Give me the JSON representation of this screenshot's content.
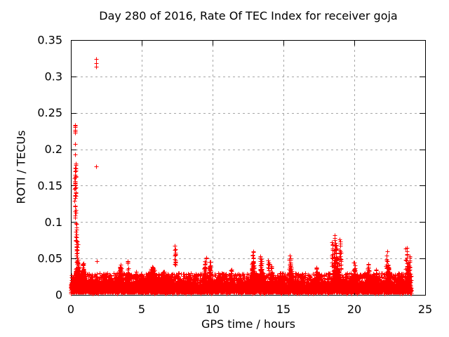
{
  "chart_data": {
    "type": "scatter",
    "title": "Day 280 of 2016, Rate Of TEC Index for receiver goja",
    "xlabel": "GPS time / hours",
    "ylabel": "ROTI / TECUs",
    "xlim": [
      0,
      25
    ],
    "ylim": [
      0,
      0.35
    ],
    "xtick_values": [
      0,
      5,
      10,
      15,
      20,
      25
    ],
    "xtick_labels": [
      "0",
      "5",
      "10",
      "15",
      "20",
      "25"
    ],
    "ytick_values": [
      0,
      0.05,
      0.1,
      0.15,
      0.2,
      0.25,
      0.3,
      0.35
    ],
    "ytick_labels": [
      "0",
      "0.05",
      "0.1",
      "0.15",
      "0.2",
      "0.25",
      "0.3",
      "0.35"
    ],
    "grid": true,
    "legend": "none",
    "marker": "plus",
    "colors": {
      "points": "#ff0000",
      "grid": "#a6a6a6",
      "axis": "#000000",
      "text": "#000000",
      "background": "#ffffff"
    },
    "scatter_model": {
      "seed": 2016280,
      "baseline": [
        {
          "x0": 0.0,
          "x1": 24.0,
          "y0": 0.004,
          "y1": 0.03,
          "n": 4600,
          "skew": 2.2
        },
        {
          "x0": 0.0,
          "x1": 24.0,
          "y0": 0.007,
          "y1": 0.018,
          "n": 2600,
          "skew": 1.6
        },
        {
          "x0": 0.0,
          "x1": 24.0,
          "y0": 0.002,
          "y1": 0.01,
          "n": 500,
          "skew": 1.0
        }
      ],
      "bumps": [
        [
          0.45,
          0.3,
          0.052,
          220
        ],
        [
          0.85,
          0.2,
          0.048,
          130
        ],
        [
          1.4,
          0.3,
          0.028,
          70
        ],
        [
          1.85,
          0.15,
          0.032,
          60
        ],
        [
          2.35,
          0.3,
          0.031,
          90
        ],
        [
          2.8,
          0.2,
          0.026,
          50
        ],
        [
          3.5,
          0.28,
          0.045,
          130
        ],
        [
          4.02,
          0.18,
          0.048,
          100
        ],
        [
          4.6,
          0.18,
          0.033,
          70
        ],
        [
          5.0,
          0.2,
          0.028,
          60
        ],
        [
          5.75,
          0.55,
          0.041,
          420
        ],
        [
          6.55,
          0.3,
          0.035,
          160
        ],
        [
          7.0,
          0.2,
          0.027,
          70
        ],
        [
          8.3,
          0.45,
          0.023,
          90
        ],
        [
          9.45,
          0.22,
          0.043,
          110
        ],
        [
          9.8,
          0.15,
          0.044,
          80
        ],
        [
          10.45,
          0.3,
          0.028,
          80
        ],
        [
          11.3,
          0.17,
          0.041,
          70
        ],
        [
          12.0,
          0.3,
          0.027,
          70
        ],
        [
          12.85,
          0.28,
          0.05,
          150
        ],
        [
          13.45,
          0.2,
          0.046,
          100
        ],
        [
          14.15,
          0.22,
          0.043,
          100
        ],
        [
          14.75,
          0.2,
          0.031,
          70
        ],
        [
          15.5,
          0.25,
          0.045,
          130
        ],
        [
          16.35,
          0.2,
          0.031,
          70
        ],
        [
          17.35,
          0.2,
          0.041,
          80
        ],
        [
          18.7,
          0.4,
          0.058,
          230
        ],
        [
          20.0,
          0.17,
          0.042,
          80
        ],
        [
          21.0,
          0.25,
          0.045,
          120
        ],
        [
          21.55,
          0.2,
          0.035,
          70
        ],
        [
          22.4,
          0.25,
          0.047,
          130
        ],
        [
          23.3,
          0.15,
          0.035,
          60
        ],
        [
          23.8,
          0.18,
          0.046,
          120
        ]
      ],
      "columns": [
        [
          0.32,
          0.105,
          0.18,
          24
        ],
        [
          0.3,
          0.135,
          0.178,
          10
        ],
        [
          0.38,
          0.06,
          0.098,
          16
        ],
        [
          0.45,
          0.05,
          0.075,
          10
        ],
        [
          7.36,
          0.04,
          0.066,
          13
        ],
        [
          9.5,
          0.036,
          0.051,
          8
        ],
        [
          9.8,
          0.032,
          0.047,
          7
        ],
        [
          12.85,
          0.04,
          0.06,
          12
        ],
        [
          13.4,
          0.036,
          0.052,
          10
        ],
        [
          13.95,
          0.034,
          0.048,
          8
        ],
        [
          15.45,
          0.034,
          0.054,
          9
        ],
        [
          18.45,
          0.04,
          0.073,
          12
        ],
        [
          18.6,
          0.045,
          0.08,
          13
        ],
        [
          18.75,
          0.04,
          0.068,
          10
        ],
        [
          18.95,
          0.04,
          0.076,
          12
        ],
        [
          19.05,
          0.035,
          0.06,
          8
        ],
        [
          20.0,
          0.034,
          0.046,
          6
        ],
        [
          22.3,
          0.035,
          0.058,
          10
        ],
        [
          23.67,
          0.035,
          0.065,
          12
        ],
        [
          23.9,
          0.03,
          0.052,
          10
        ]
      ],
      "points": [
        [
          0.29,
          0.2335
        ],
        [
          0.315,
          0.2325
        ],
        [
          0.3,
          0.2305
        ],
        [
          0.295,
          0.2265
        ],
        [
          0.31,
          0.2245
        ],
        [
          0.285,
          0.2225
        ],
        [
          0.31,
          0.2075
        ],
        [
          0.295,
          0.193
        ],
        [
          1.78,
          0.324
        ],
        [
          1.785,
          0.3185
        ],
        [
          1.78,
          0.313
        ],
        [
          1.8,
          0.1765
        ],
        [
          1.82,
          0.046
        ]
      ]
    }
  }
}
